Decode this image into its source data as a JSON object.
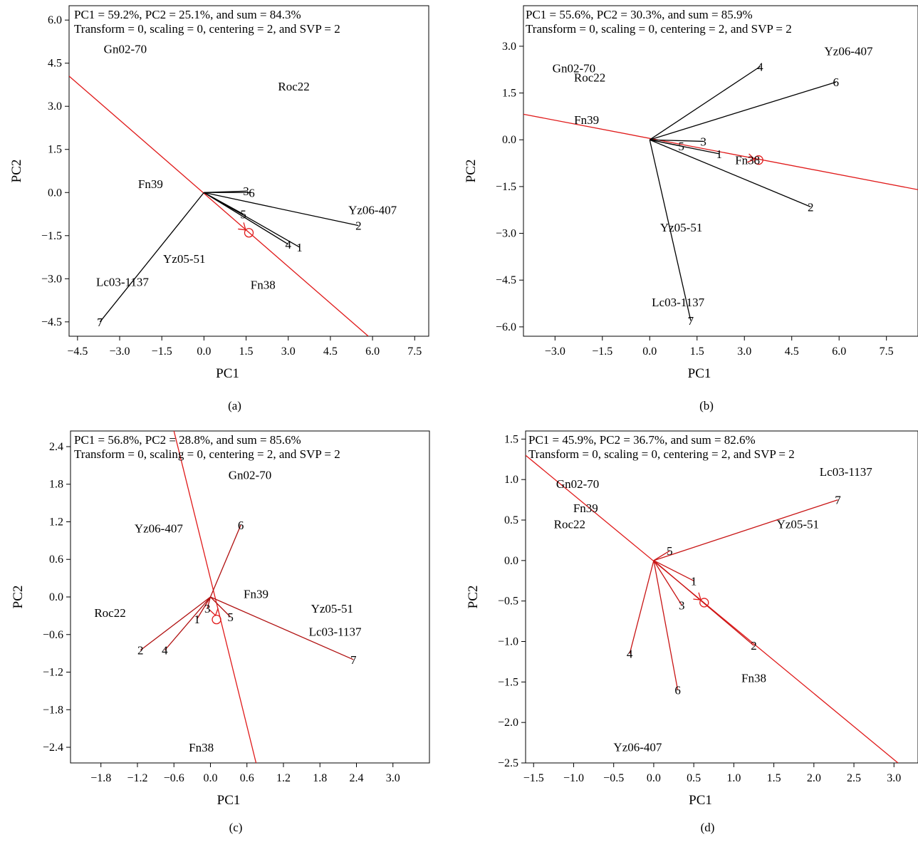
{
  "chart_data": [
    {
      "panel": "(a)",
      "type": "scatter",
      "title_lines": [
        "PC1 = 59.2%, PC2 = 25.1%, and sum = 84.3%",
        "Transform = 0, scaling = 0, centering = 2, and SVP = 2"
      ],
      "xlabel": "PC1",
      "ylabel": "PC2",
      "xlim": [
        -4.8,
        8.0
      ],
      "ylim": [
        -5.0,
        6.5
      ],
      "xticks": [
        "-4.5",
        "-3.0",
        "-1.5",
        "0.0",
        "1.5",
        "3.0",
        "4.5",
        "6.0",
        "7.5"
      ],
      "yticks": [
        "-4.5",
        "-3.0",
        "-1.5",
        "0.0",
        "1.5",
        "3.0",
        "4.5",
        "6.0"
      ],
      "genotypes": [
        {
          "label": "Gn02-70",
          "x": -2.8,
          "y": 5.0
        },
        {
          "label": "Roc22",
          "x": 3.2,
          "y": 3.7
        },
        {
          "label": "Fn39",
          "x": -1.9,
          "y": 0.3
        },
        {
          "label": "Yz06-407",
          "x": 6.0,
          "y": -0.6
        },
        {
          "label": "Yz05-51",
          "x": -0.7,
          "y": -2.3
        },
        {
          "label": "Lc03-1137",
          "x": -2.9,
          "y": -3.1
        },
        {
          "label": "Fn38",
          "x": 2.1,
          "y": -3.2
        }
      ],
      "environments": [
        {
          "label": "3",
          "x": 1.5,
          "y": 0.05
        },
        {
          "label": "6",
          "x": 1.7,
          "y": 0.0
        },
        {
          "label": "5",
          "x": 1.4,
          "y": -0.75
        },
        {
          "label": "2",
          "x": 5.5,
          "y": -1.15
        },
        {
          "label": "4",
          "x": 3.0,
          "y": -1.8
        },
        {
          "label": "1",
          "x": 3.4,
          "y": -1.9
        },
        {
          "label": "7",
          "x": -3.7,
          "y": -4.5
        }
      ],
      "axis_line": {
        "from": [
          -4.8,
          4.05
        ],
        "to": [
          5.85,
          -5.0
        ]
      },
      "average_marker": {
        "x": 1.6,
        "y": -1.4
      }
    },
    {
      "panel": "(b)",
      "type": "scatter",
      "title_lines": [
        "PC1 = 55.6%, PC2 = 30.3%, and sum = 85.9%",
        "Transform = 0, scaling = 0, centering = 2, and SVP = 2"
      ],
      "xlabel": "PC1",
      "ylabel": "PC2",
      "xlim": [
        -4.0,
        8.5
      ],
      "ylim": [
        -6.3,
        4.3
      ],
      "xticks": [
        "-3.0",
        "-1.5",
        "0.0",
        "1.5",
        "3.0",
        "4.5",
        "6.0",
        "7.5"
      ],
      "yticks": [
        "-6.0",
        "-4.5",
        "-3.0",
        "-1.5",
        "0.0",
        "1.5",
        "3.0"
      ],
      "genotypes": [
        {
          "label": "Gn02-70",
          "x": -2.4,
          "y": 2.3
        },
        {
          "label": "Roc22",
          "x": -1.9,
          "y": 2.0
        },
        {
          "label": "Yz06-407",
          "x": 6.3,
          "y": 2.85
        },
        {
          "label": "Fn39",
          "x": -2.0,
          "y": 0.65
        },
        {
          "label": "Fn38",
          "x": 3.1,
          "y": -0.65
        },
        {
          "label": "Yz05-51",
          "x": 1.0,
          "y": -2.8
        },
        {
          "label": "Lc03-1137",
          "x": 0.9,
          "y": -5.2
        }
      ],
      "environments": [
        {
          "label": "4",
          "x": 3.5,
          "y": 2.35
        },
        {
          "label": "6",
          "x": 5.9,
          "y": 1.85
        },
        {
          "label": "3",
          "x": 1.7,
          "y": -0.05
        },
        {
          "label": "5",
          "x": 1.0,
          "y": -0.2
        },
        {
          "label": "1",
          "x": 2.2,
          "y": -0.45
        },
        {
          "label": "2",
          "x": 5.1,
          "y": -2.15
        },
        {
          "label": "7",
          "x": 1.3,
          "y": -5.8
        }
      ],
      "axis_line": {
        "from": [
          -4.0,
          0.82
        ],
        "to": [
          8.5,
          -1.6
        ]
      },
      "average_marker": {
        "x": 3.45,
        "y": -0.65
      }
    },
    {
      "panel": "(c)",
      "type": "scatter",
      "title_lines": [
        "PC1 = 56.8%, PC2 = 28.8%, and sum = 85.6%",
        "Transform = 0, scaling = 0, centering = 2, and SVP = 2"
      ],
      "xlabel": "PC1",
      "ylabel": "PC2",
      "xlim": [
        -2.3,
        3.6
      ],
      "ylim": [
        -2.65,
        2.65
      ],
      "xticks": [
        "-1.8",
        "-1.2",
        "-0.6",
        "0.0",
        "0.6",
        "1.2",
        "1.8",
        "2.4",
        "3.0"
      ],
      "yticks": [
        "-2.4",
        "-1.8",
        "-1.2",
        "-0.6",
        "0.0",
        "0.6",
        "1.2",
        "1.8",
        "2.4"
      ],
      "genotypes": [
        {
          "label": "Gn02-70",
          "x": 0.65,
          "y": 1.95
        },
        {
          "label": "Yz06-407",
          "x": -0.85,
          "y": 1.1
        },
        {
          "label": "Fn39",
          "x": 0.75,
          "y": 0.05
        },
        {
          "label": "Roc22",
          "x": -1.65,
          "y": -0.25
        },
        {
          "label": "Yz05-51",
          "x": 2.0,
          "y": -0.18
        },
        {
          "label": "Lc03-1137",
          "x": 2.05,
          "y": -0.55
        },
        {
          "label": "Fn38",
          "x": -0.15,
          "y": -2.4
        }
      ],
      "environments": [
        {
          "label": "6",
          "x": 0.5,
          "y": 1.15
        },
        {
          "label": "3",
          "x": -0.05,
          "y": -0.18
        },
        {
          "label": "5",
          "x": 0.33,
          "y": -0.32
        },
        {
          "label": "1",
          "x": -0.22,
          "y": -0.35
        },
        {
          "label": "2",
          "x": -1.15,
          "y": -0.85
        },
        {
          "label": "4",
          "x": -0.75,
          "y": -0.85
        },
        {
          "label": "7",
          "x": 2.35,
          "y": -1.0
        }
      ],
      "axis_line": {
        "from": [
          -0.6,
          2.65
        ],
        "to": [
          0.75,
          -2.65
        ]
      },
      "average_marker": {
        "x": 0.1,
        "y": -0.36
      }
    },
    {
      "panel": "(d)",
      "type": "scatter",
      "title_lines": [
        "PC1 = 45.9%, PC2 = 36.7%, and sum = 82.6%",
        "Transform = 0, scaling = 0, centering = 2, and SVP = 2"
      ],
      "xlabel": "PC1",
      "ylabel": "PC2",
      "xlim": [
        -1.6,
        3.3
      ],
      "ylim": [
        -2.5,
        1.6
      ],
      "xticks": [
        "-1.5",
        "-1.0",
        "-0.5",
        "0.0",
        "0.5",
        "1.0",
        "1.5",
        "2.0",
        "2.5",
        "3.0"
      ],
      "yticks": [
        "-2.5",
        "-2.0",
        "-1.5",
        "-1.0",
        "-0.5",
        "0.0",
        "0.5",
        "1.0",
        "1.5"
      ],
      "genotypes": [
        {
          "label": "Lc03-1137",
          "x": 2.4,
          "y": 1.1
        },
        {
          "label": "Gn02-70",
          "x": -0.95,
          "y": 0.95
        },
        {
          "label": "Fn39",
          "x": -0.85,
          "y": 0.65
        },
        {
          "label": "Roc22",
          "x": -1.05,
          "y": 0.45
        },
        {
          "label": "Yz05-51",
          "x": 1.8,
          "y": 0.45
        },
        {
          "label": "Fn38",
          "x": 1.25,
          "y": -1.45
        },
        {
          "label": "Yz06-407",
          "x": -0.2,
          "y": -2.3
        }
      ],
      "environments": [
        {
          "label": "7",
          "x": 2.3,
          "y": 0.75
        },
        {
          "label": "5",
          "x": 0.2,
          "y": 0.12
        },
        {
          "label": "1",
          "x": 0.5,
          "y": -0.25
        },
        {
          "label": "3",
          "x": 0.35,
          "y": -0.55
        },
        {
          "label": "2",
          "x": 1.25,
          "y": -1.05
        },
        {
          "label": "4",
          "x": -0.3,
          "y": -1.15
        },
        {
          "label": "6",
          "x": 0.3,
          "y": -1.6
        }
      ],
      "axis_line": {
        "from": [
          -1.6,
          1.3
        ],
        "to": [
          3.05,
          -2.5
        ]
      },
      "average_marker": {
        "x": 0.63,
        "y": -0.52
      }
    }
  ],
  "colors": {
    "axis_line": "#e01a1a",
    "vector_a": "#000000",
    "vector_b": "#000000",
    "vector_c": "#b01010",
    "vector_d": "#c81414"
  }
}
